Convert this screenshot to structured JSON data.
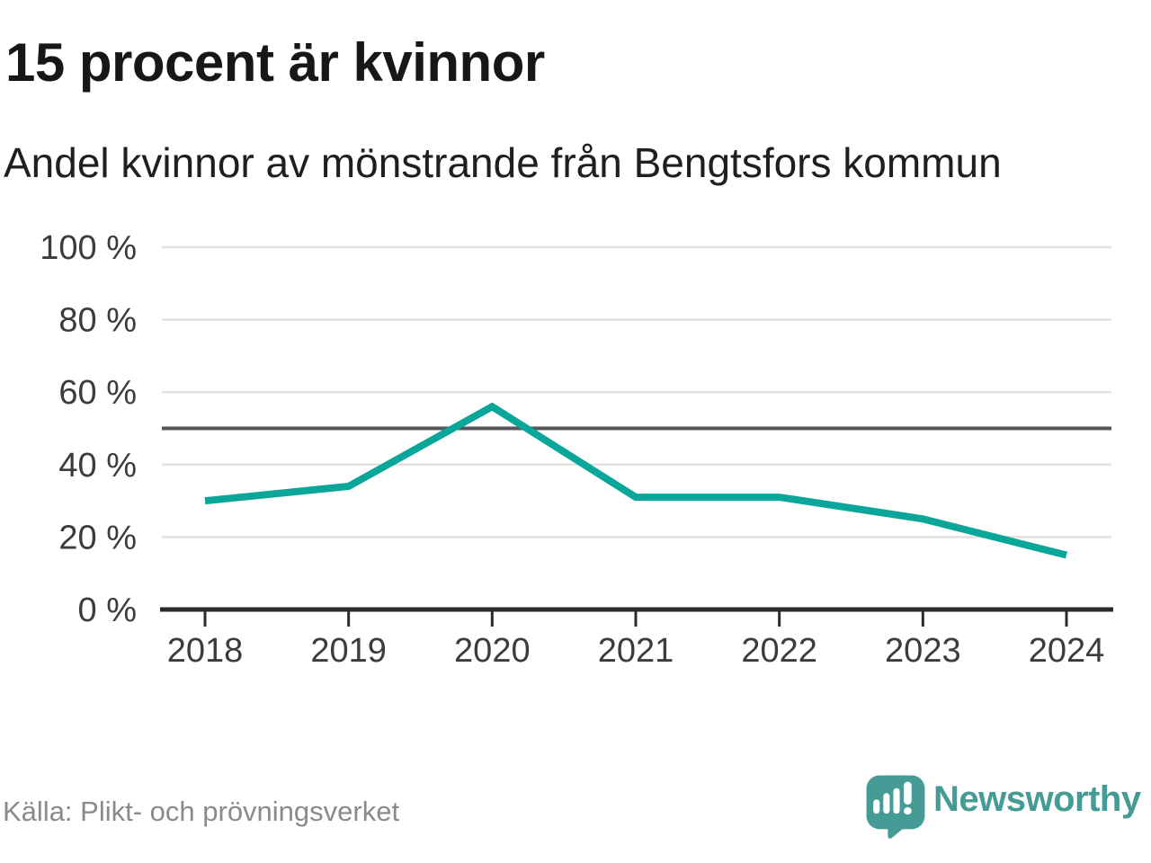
{
  "header": {
    "title": "15 procent är kvinnor",
    "subtitle": "Andel kvinnor av mönstrande från Bengtsfors kommun"
  },
  "chart_data": {
    "type": "line",
    "categories": [
      "2018",
      "2019",
      "2020",
      "2021",
      "2022",
      "2023",
      "2024"
    ],
    "series": [
      {
        "name": "Andel kvinnor av mönstrande",
        "values": [
          30,
          34,
          56,
          31,
          31,
          25,
          15
        ]
      }
    ],
    "unit": "%",
    "title": "15 procent är kvinnor",
    "subtitle": "Andel kvinnor av mönstrande från Bengtsfors kommun",
    "xlabel": "",
    "ylabel": "",
    "ylim": [
      0,
      100
    ],
    "yticks": [
      0,
      20,
      40,
      60,
      80,
      100
    ],
    "ytick_format": "{v} %",
    "reference_line": 50,
    "grid": true,
    "legend": "none"
  },
  "footer": {
    "source": "Källa: Plikt- och prövningsverket",
    "brand": "Newsworthy"
  },
  "icons": {
    "logo": "newsworthy-speech-bubble-bar-chart-icon"
  },
  "colors": {
    "accent": "#0ba69a",
    "brand": "#459c96",
    "grid": "#e1e1e1",
    "reference": "#56565a",
    "axis": "#2b2b2b",
    "tick_text": "#3c3c3c",
    "title_text": "#171717",
    "subtitle_text": "#1f1f1f",
    "source_text": "#8a8a8a"
  }
}
